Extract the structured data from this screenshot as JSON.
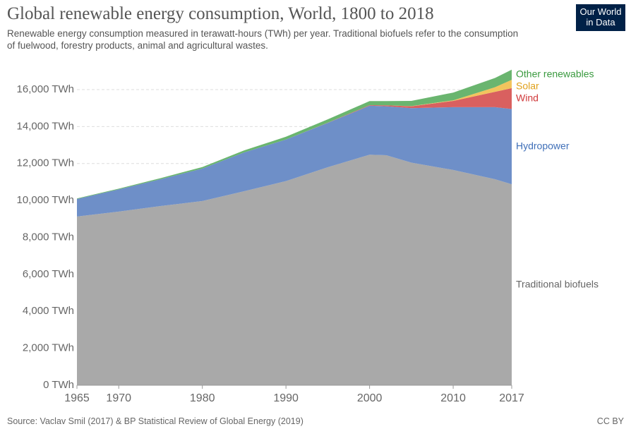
{
  "chart_data": {
    "type": "stacked-area",
    "title": "Global renewable energy consumption, World, 1800 to 2018",
    "subtitle": "Renewable energy consumption measured in terawatt-hours (TWh) per year. Traditional biofuels refer to the consumption of fuelwood, forestry products, animal and agricultural wastes.",
    "logo": "Our World in Data",
    "source": "Source: Vaclav Smil (2017) & BP Statistical Review of Global Energy (2019)",
    "license": "CC BY",
    "x": [
      1965,
      1970,
      1975,
      1980,
      1985,
      1990,
      1995,
      2000,
      2002,
      2005,
      2010,
      2015,
      2017
    ],
    "series": [
      {
        "name": "Traditional biofuels",
        "color": "#a9a9a9",
        "label_color": "#666666",
        "values": [
          9130,
          9400,
          9700,
          9970,
          10500,
          11050,
          11800,
          12480,
          12450,
          12050,
          11650,
          11150,
          10880
        ]
      },
      {
        "name": "Hydropower",
        "color": "#6e8fc8",
        "label_color": "#3f6fb8",
        "values": [
          950,
          1200,
          1450,
          1760,
          2100,
          2250,
          2400,
          2650,
          2650,
          2950,
          3400,
          3900,
          4070
        ]
      },
      {
        "name": "Wind",
        "color": "#d9605f",
        "label_color": "#d0393b",
        "values": [
          0,
          0,
          0,
          0,
          0,
          0,
          10,
          30,
          50,
          100,
          340,
          830,
          1130
        ]
      },
      {
        "name": "Solar",
        "color": "#f2c45d",
        "label_color": "#e0a11b",
        "values": [
          0,
          0,
          0,
          0,
          0,
          0,
          0,
          0,
          0,
          10,
          30,
          250,
          450
        ]
      },
      {
        "name": "Other renewables",
        "color": "#6ab56f",
        "label_color": "#3a9a3f",
        "values": [
          30,
          40,
          60,
          80,
          110,
          150,
          180,
          220,
          230,
          280,
          420,
          500,
          550
        ]
      }
    ],
    "xlim": [
      1965,
      2017
    ],
    "xticks": [
      1965,
      1970,
      1980,
      1990,
      2000,
      2010,
      2017
    ],
    "ylim": [
      0,
      17200
    ],
    "yticks": [
      {
        "value": 0,
        "label": "0 TWh"
      },
      {
        "value": 2000,
        "label": "2,000 TWh"
      },
      {
        "value": 4000,
        "label": "4,000 TWh"
      },
      {
        "value": 6000,
        "label": "6,000 TWh"
      },
      {
        "value": 8000,
        "label": "8,000 TWh"
      },
      {
        "value": 10000,
        "label": "10,000 TWh"
      },
      {
        "value": 12000,
        "label": "12,000 TWh"
      },
      {
        "value": 14000,
        "label": "14,000 TWh"
      },
      {
        "value": 16000,
        "label": "16,000 TWh"
      }
    ],
    "grid": true
  }
}
